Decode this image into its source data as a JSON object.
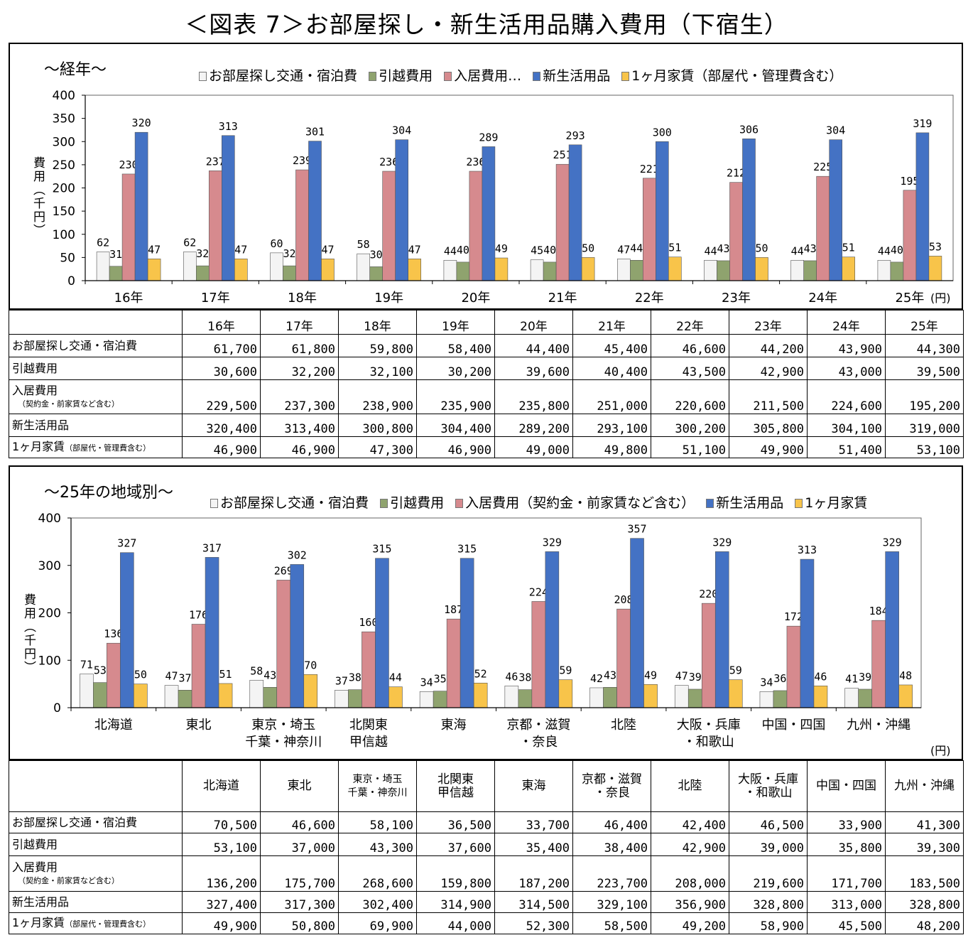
{
  "title": "＜図表 7＞お部屋探し・新生活用品購入費用（下宿生）",
  "colors": {
    "s1": "#f4f4f4",
    "s2": "#8fa36e",
    "s3": "#d68a8e",
    "s4": "#4472c4",
    "s5": "#f8c44a"
  },
  "chart1": {
    "heading": "～経年～",
    "legend": [
      "お部屋探し交通・宿泊費",
      "引越費用",
      "入居費用…",
      "新生活用品",
      "1ヶ月家賃（部屋代・管理費含む）"
    ],
    "ylabel": "費用（千円）",
    "unit": "(円)",
    "yticks": [
      "0",
      "50",
      "100",
      "150",
      "200",
      "250",
      "300",
      "350",
      "400"
    ]
  },
  "chart2": {
    "heading": "～25年の地域別～",
    "legend": [
      "お部屋探し交通・宿泊費",
      "引越費用",
      "入居費用（契約金・前家賃など含む）",
      "新生活用品",
      "1ヶ月家賃"
    ],
    "ylabel": "費用（千円）",
    "unit": "(円)",
    "yticks": [
      "0",
      "100",
      "200",
      "300",
      "400"
    ]
  },
  "chart_data": [
    {
      "type": "bar",
      "title": "～経年～",
      "ylabel": "費用（千円）",
      "ylim": [
        0,
        400
      ],
      "legend_position": "top",
      "categories": [
        "16年",
        "17年",
        "18年",
        "19年",
        "20年",
        "21年",
        "22年",
        "23年",
        "24年",
        "25年"
      ],
      "series": [
        {
          "name": "お部屋探し交通・宿泊費",
          "values": [
            62,
            62,
            60,
            58,
            44,
            45,
            47,
            44,
            44,
            44
          ]
        },
        {
          "name": "引越費用",
          "values": [
            31,
            32,
            32,
            30,
            40,
            40,
            44,
            43,
            43,
            40
          ]
        },
        {
          "name": "入居費用…",
          "values": [
            230,
            237,
            239,
            236,
            236,
            251,
            221,
            212,
            225,
            195
          ]
        },
        {
          "name": "新生活用品",
          "values": [
            320,
            313,
            301,
            304,
            289,
            293,
            300,
            306,
            304,
            319
          ]
        },
        {
          "name": "1ヶ月家賃（部屋代・管理費含む）",
          "values": [
            47,
            47,
            47,
            47,
            49,
            50,
            51,
            50,
            51,
            53
          ]
        }
      ]
    },
    {
      "type": "bar",
      "title": "～25年の地域別～",
      "ylabel": "費用（千円）",
      "ylim": [
        0,
        400
      ],
      "legend_position": "top",
      "categories": [
        [
          "北海道"
        ],
        [
          "東北"
        ],
        [
          "東京・埼玉",
          "千葉・神奈川"
        ],
        [
          "北関東",
          "甲信越"
        ],
        [
          "東海"
        ],
        [
          "京都・滋賀",
          "・奈良"
        ],
        [
          "北陸"
        ],
        [
          "大阪・兵庫",
          "・和歌山"
        ],
        [
          "中国・四国"
        ],
        [
          "九州・沖縄"
        ]
      ],
      "series": [
        {
          "name": "お部屋探し交通・宿泊費",
          "values": [
            71,
            47,
            58,
            37,
            34,
            46,
            42,
            47,
            34,
            41
          ]
        },
        {
          "name": "引越費用",
          "values": [
            53,
            37,
            43,
            38,
            35,
            38,
            43,
            39,
            36,
            39
          ]
        },
        {
          "name": "入居費用（契約金・前家賃など含む）",
          "values": [
            136,
            176,
            269,
            160,
            187,
            224,
            208,
            220,
            172,
            184
          ]
        },
        {
          "name": "新生活用品",
          "values": [
            327,
            317,
            302,
            315,
            315,
            329,
            357,
            329,
            313,
            329
          ]
        },
        {
          "name": "1ヶ月家賃",
          "values": [
            50,
            51,
            70,
            44,
            52,
            59,
            49,
            59,
            46,
            48
          ]
        }
      ]
    }
  ],
  "table1": {
    "headers": [
      "16年",
      "17年",
      "18年",
      "19年",
      "20年",
      "21年",
      "22年",
      "23年",
      "24年",
      "25年"
    ],
    "rows": [
      {
        "label": "お部屋探し交通・宿泊費",
        "sub": "",
        "values": [
          "61,700",
          "61,800",
          "59,800",
          "58,400",
          "44,400",
          "45,400",
          "46,600",
          "44,200",
          "43,900",
          "44,300"
        ]
      },
      {
        "label": "引越費用",
        "sub": "",
        "values": [
          "30,600",
          "32,200",
          "32,100",
          "30,200",
          "39,600",
          "40,400",
          "43,500",
          "42,900",
          "43,000",
          "39,500"
        ]
      },
      {
        "label": "入居費用",
        "sub": "（契約金・前家賃など含む）",
        "values": [
          "229,500",
          "237,300",
          "238,900",
          "235,900",
          "235,800",
          "251,000",
          "220,600",
          "211,500",
          "224,600",
          "195,200"
        ]
      },
      {
        "label": "新生活用品",
        "sub": "",
        "values": [
          "320,400",
          "313,400",
          "300,800",
          "304,400",
          "289,200",
          "293,100",
          "300,200",
          "305,800",
          "304,100",
          "319,000"
        ]
      },
      {
        "label": "1ヶ月家賃",
        "sub": "（部屋代・管理費含む）",
        "values": [
          "46,900",
          "46,900",
          "47,300",
          "46,900",
          "49,000",
          "49,800",
          "51,100",
          "49,900",
          "51,400",
          "53,100"
        ]
      }
    ]
  },
  "table2": {
    "headers": [
      [
        "北海道"
      ],
      [
        "東北"
      ],
      [
        "東京・埼玉",
        "千葉・神奈川"
      ],
      [
        "北関東",
        "甲信越"
      ],
      [
        "東海"
      ],
      [
        "京都・滋賀",
        "・奈良"
      ],
      [
        "北陸"
      ],
      [
        "大阪・兵庫",
        "・和歌山"
      ],
      [
        "中国・四国"
      ],
      [
        "九州・沖縄"
      ]
    ],
    "rows": [
      {
        "label": "お部屋探し交通・宿泊費",
        "sub": "",
        "values": [
          "70,500",
          "46,600",
          "58,100",
          "36,500",
          "33,700",
          "46,400",
          "42,400",
          "46,500",
          "33,900",
          "41,300"
        ]
      },
      {
        "label": "引越費用",
        "sub": "",
        "values": [
          "53,100",
          "37,000",
          "43,300",
          "37,600",
          "35,400",
          "38,400",
          "42,900",
          "39,000",
          "35,800",
          "39,300"
        ]
      },
      {
        "label": "入居費用",
        "sub": "（契約金・前家賃など含む）",
        "values": [
          "136,200",
          "175,700",
          "268,600",
          "159,800",
          "187,200",
          "223,700",
          "208,000",
          "219,600",
          "171,700",
          "183,500"
        ]
      },
      {
        "label": "新生活用品",
        "sub": "",
        "values": [
          "327,400",
          "317,300",
          "302,400",
          "314,900",
          "314,500",
          "329,100",
          "356,900",
          "328,800",
          "313,000",
          "328,800"
        ]
      },
      {
        "label": "1ヶ月家賃",
        "sub": "（部屋代・管理費含む）",
        "values": [
          "49,900",
          "50,800",
          "69,900",
          "44,000",
          "52,300",
          "58,500",
          "49,200",
          "58,900",
          "45,500",
          "48,200"
        ]
      }
    ]
  }
}
